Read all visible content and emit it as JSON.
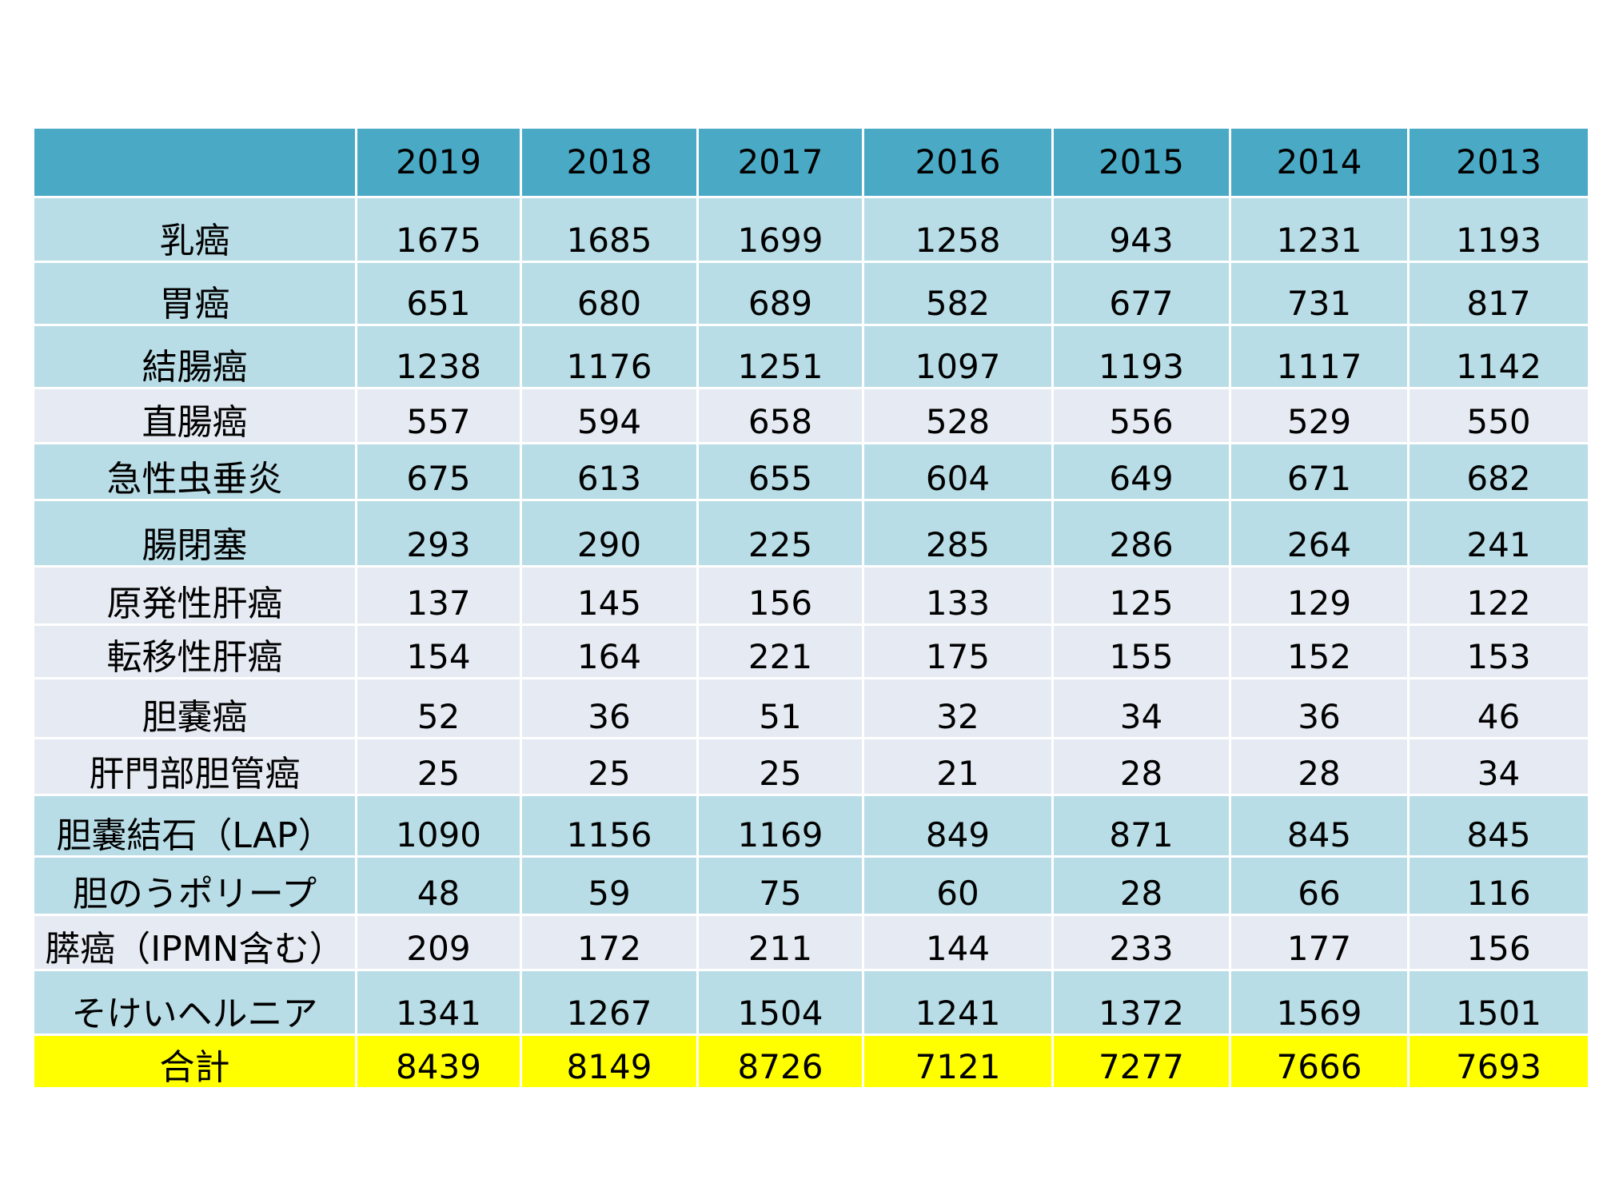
{
  "colors": {
    "header": "#4aaac6",
    "row_band_a": "#b8dde6",
    "row_band_b": "#e6ebf3",
    "total_row": "#ffff00",
    "grid_line": "#ffffff"
  },
  "chart_data": {
    "type": "table",
    "corner_label": "",
    "columns": [
      "2019",
      "2018",
      "2017",
      "2016",
      "2015",
      "2014",
      "2013"
    ],
    "rows": [
      {
        "label": "乳癌",
        "values": [
          1675,
          1685,
          1699,
          1258,
          943,
          1231,
          1193
        ],
        "band": "a"
      },
      {
        "label": "胃癌",
        "values": [
          651,
          680,
          689,
          582,
          677,
          731,
          817
        ],
        "band": "a"
      },
      {
        "label": "結腸癌",
        "values": [
          1238,
          1176,
          1251,
          1097,
          1193,
          1117,
          1142
        ],
        "band": "a"
      },
      {
        "label": "直腸癌",
        "values": [
          557,
          594,
          658,
          528,
          556,
          529,
          550
        ],
        "band": "b"
      },
      {
        "label": "急性虫垂炎",
        "values": [
          675,
          613,
          655,
          604,
          649,
          671,
          682
        ],
        "band": "a"
      },
      {
        "label": "腸閉塞",
        "values": [
          293,
          290,
          225,
          285,
          286,
          264,
          241
        ],
        "band": "a"
      },
      {
        "label": "原発性肝癌",
        "values": [
          137,
          145,
          156,
          133,
          125,
          129,
          122
        ],
        "band": "b"
      },
      {
        "label": "転移性肝癌",
        "values": [
          154,
          164,
          221,
          175,
          155,
          152,
          153
        ],
        "band": "b"
      },
      {
        "label": "胆嚢癌",
        "values": [
          52,
          36,
          51,
          32,
          34,
          36,
          46
        ],
        "band": "b"
      },
      {
        "label": "肝門部胆管癌",
        "values": [
          25,
          25,
          25,
          21,
          28,
          28,
          34
        ],
        "band": "b"
      },
      {
        "label": "胆嚢結石（LAP）",
        "values": [
          1090,
          1156,
          1169,
          849,
          871,
          845,
          845
        ],
        "band": "a"
      },
      {
        "label": "胆のうポリープ",
        "values": [
          48,
          59,
          75,
          60,
          28,
          66,
          116
        ],
        "band": "a"
      },
      {
        "label": "膵癌（IPMN含む）",
        "values": [
          209,
          172,
          211,
          144,
          233,
          177,
          156
        ],
        "band": "b"
      },
      {
        "label": "そけいヘルニア",
        "values": [
          1341,
          1267,
          1504,
          1241,
          1372,
          1569,
          1501
        ],
        "band": "a"
      }
    ],
    "total": {
      "label": "合計",
      "values": [
        8439,
        8149,
        8726,
        7121,
        7277,
        7666,
        7693
      ]
    }
  }
}
